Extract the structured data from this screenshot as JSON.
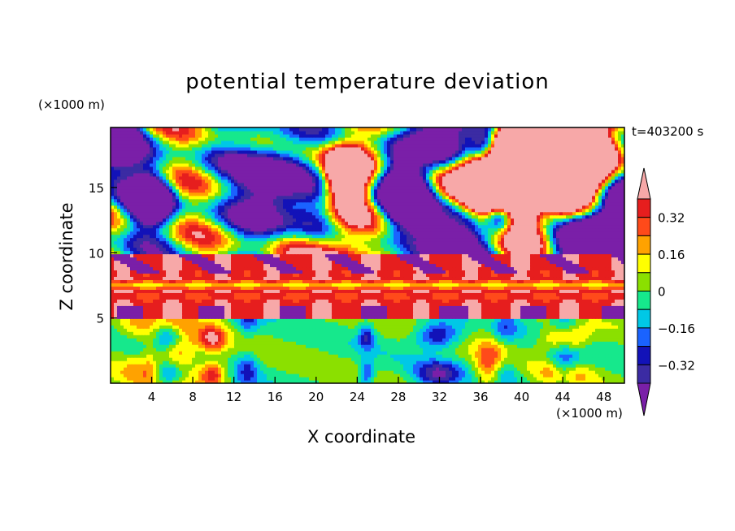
{
  "chart_data": {
    "type": "heatmap",
    "title": "potential temperature deviation",
    "xlabel": "X coordinate",
    "ylabel": "Z coordinate",
    "x_units": "(×1000 m)",
    "z_units": "(×1000 m)",
    "time_label": "t=403200 s",
    "xlim": [
      0,
      50
    ],
    "ylim": [
      0,
      19.6
    ],
    "x_ticks": [
      4,
      8,
      12,
      16,
      20,
      24,
      28,
      32,
      36,
      40,
      44,
      48
    ],
    "y_ticks": [
      5,
      10,
      15
    ],
    "colorbar": {
      "levels": [
        -0.4,
        -0.32,
        -0.24,
        -0.16,
        -0.08,
        0,
        0.08,
        0.16,
        0.24,
        0.32,
        0.4
      ],
      "labels": [
        "0.32",
        "0.16",
        "0",
        "−0.16",
        "−0.32"
      ],
      "label_values": [
        0.32,
        0.16,
        0,
        -0.16,
        -0.32
      ],
      "colors": [
        "#7a1fa8",
        "#3b2ba3",
        "#1212b8",
        "#1a63ff",
        "#00c8e6",
        "#16e88c",
        "#8be000",
        "#ffff00",
        "#ffa200",
        "#ff4a1a",
        "#e61e1e",
        "#f7a8a8"
      ],
      "extend": "both"
    },
    "regions": [
      {
        "name": "upper layer",
        "z_range": [
          10,
          19.6
        ],
        "pattern": "large patches of strongly negative (purple) and strongly positive (pink) deviation separated by thin multicolour fronts"
      },
      {
        "name": "inversion band",
        "z_range": [
          5,
          10
        ],
        "pattern": "mostly positive (pink) with a horizontal band of red/orange/yellow layers near z≈6–8"
      },
      {
        "name": "boundary layer",
        "z_range": [
          0,
          5
        ],
        "pattern": "vertical convective plumes of mixed positive and negative values (≈ −0.32 to 0.32)"
      }
    ]
  }
}
